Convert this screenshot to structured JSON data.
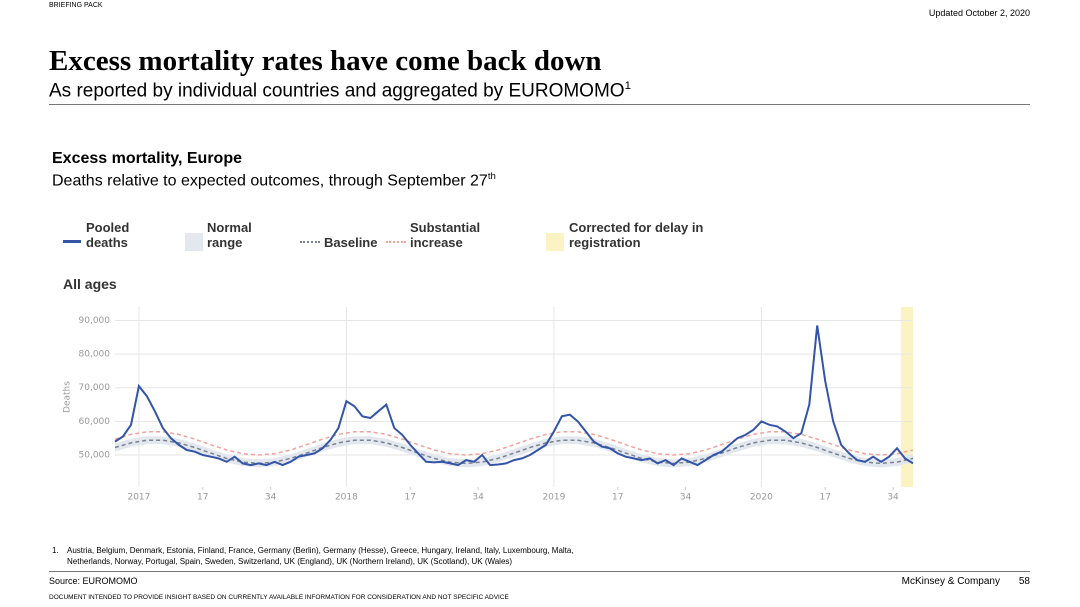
{
  "header": {
    "label": "BRIEFING PACK",
    "updated": "Updated October 2, 2020",
    "title": "Excess mortality rates have come back down",
    "subtitle": "As reported by individual countries and aggregated by EUROMOMO",
    "subtitle_note": "1"
  },
  "chart_data": {
    "type": "line",
    "title": "Excess mortality, Europe",
    "subtitle": "Deaths relative to expected outcomes, through September 27",
    "subtitle_suffix": "th",
    "panel_label": "All ages",
    "y_label": "Deaths",
    "xlim": [
      -6,
      194
    ],
    "ylim": [
      40500,
      94000
    ],
    "yticks": [
      {
        "value": 50000,
        "label": "50,000"
      },
      {
        "value": 60000,
        "label": "60,000"
      },
      {
        "value": 70000,
        "label": "70,000"
      },
      {
        "value": 80000,
        "label": "80,000"
      },
      {
        "value": 90000,
        "label": "90,000"
      }
    ],
    "xticks": [
      {
        "value": 0,
        "label": "2017"
      },
      {
        "value": 16,
        "label": "17"
      },
      {
        "value": 33,
        "label": "34"
      },
      {
        "value": 52,
        "label": "2018"
      },
      {
        "value": 68,
        "label": "17"
      },
      {
        "value": 85,
        "label": "34"
      },
      {
        "value": 104,
        "label": "2019"
      },
      {
        "value": 120,
        "label": "17"
      },
      {
        "value": 137,
        "label": "34"
      },
      {
        "value": 156,
        "label": "2020"
      },
      {
        "value": 172,
        "label": "17"
      },
      {
        "value": 189,
        "label": "34"
      }
    ],
    "grid": true,
    "corrected": {
      "name": "Corrected for delay in registration",
      "color": "#fcf3c4",
      "x": [
        191,
        194
      ]
    },
    "series": [
      {
        "name": "Pooled deaths",
        "color": "#3454a8",
        "style": "solid",
        "x": [
          -6,
          -4,
          -2,
          0,
          2,
          4,
          6,
          8,
          10,
          12,
          14,
          16,
          18,
          20,
          22,
          24,
          26,
          28,
          30,
          32,
          34,
          36,
          38,
          40,
          42,
          44,
          46,
          48,
          50,
          52,
          54,
          56,
          58,
          60,
          62,
          64,
          66,
          68,
          70,
          72,
          74,
          76,
          78,
          80,
          82,
          84,
          86,
          88,
          90,
          92,
          94,
          96,
          98,
          100,
          102,
          104,
          106,
          108,
          110,
          112,
          114,
          116,
          118,
          120,
          122,
          124,
          126,
          128,
          130,
          132,
          134,
          136,
          138,
          140,
          142,
          144,
          146,
          148,
          150,
          152,
          154,
          156,
          158,
          160,
          162,
          164,
          166,
          168,
          170,
          172,
          174,
          176,
          178,
          180,
          182,
          184,
          186,
          188,
          190,
          192,
          194
        ],
        "values": [
          54000,
          55500,
          59000,
          70500,
          67500,
          63000,
          58000,
          55000,
          53000,
          51500,
          51000,
          50000,
          49500,
          49000,
          48000,
          49500,
          47500,
          47000,
          47500,
          47000,
          48000,
          47000,
          48000,
          49500,
          50000,
          50500,
          52000,
          54500,
          58000,
          66000,
          64500,
          61500,
          61000,
          63000,
          65000,
          58000,
          56000,
          53000,
          50500,
          48000,
          47800,
          48000,
          47500,
          47000,
          48500,
          48000,
          50000,
          47000,
          47200,
          47500,
          48500,
          49000,
          50000,
          51500,
          53000,
          57000,
          61500,
          62000,
          60000,
          57000,
          54000,
          52500,
          52000,
          50500,
          49500,
          49000,
          48500,
          49000,
          47500,
          48500,
          47000,
          49000,
          48000,
          47000,
          48500,
          50000,
          51000,
          53000,
          55000,
          56000,
          57500,
          60000,
          59000,
          58500,
          57000,
          55000,
          56500,
          65000,
          88500,
          72000,
          60000,
          53000,
          50500,
          48500,
          48000,
          49500,
          48000,
          49500,
          52000,
          49000,
          47500
        ]
      },
      {
        "name": "Normal range",
        "color": "#e3e7ee",
        "style": "band",
        "x": [
          -6,
          -2,
          2,
          6,
          10,
          14,
          18,
          22,
          26,
          30,
          34,
          38,
          42,
          46,
          50,
          54,
          58,
          62,
          66,
          70,
          74,
          78,
          82,
          86,
          90,
          94,
          98,
          102,
          106,
          110,
          114,
          118,
          122,
          126,
          130,
          134,
          138,
          142,
          146,
          150,
          154,
          158,
          162,
          166,
          170,
          174,
          178,
          182,
          186,
          190,
          194
        ],
        "values": [
          53440,
          54820,
          55600,
          55600,
          54820,
          53440,
          51780,
          50210,
          49100,
          48700,
          49100,
          50210,
          51780,
          53440,
          54820,
          55600,
          55600,
          54820,
          53440,
          51780,
          50210,
          49100,
          48700,
          49100,
          50210,
          51780,
          53440,
          54820,
          55600,
          55600,
          54820,
          53440,
          51780,
          50210,
          49100,
          48700,
          49100,
          50210,
          51780,
          53440,
          54820,
          55600,
          55600,
          54820,
          53440,
          51780,
          50210,
          49100,
          48700,
          49100,
          50210
        ],
        "lower": [
          51040,
          52420,
          53200,
          53200,
          52420,
          51040,
          49380,
          47810,
          46700,
          46300,
          46700,
          47810,
          49380,
          51040,
          52420,
          53200,
          53200,
          52420,
          51040,
          49380,
          47810,
          46700,
          46300,
          46700,
          47810,
          49380,
          51040,
          52420,
          53200,
          53200,
          52420,
          51040,
          49380,
          47810,
          46700,
          46300,
          46700,
          47810,
          49380,
          51040,
          52420,
          53200,
          53200,
          52420,
          51040,
          49380,
          47810,
          46700,
          46300,
          46700,
          47810
        ]
      },
      {
        "name": "Baseline",
        "color": "#7b8291",
        "style": "dashed",
        "x": [
          -6,
          -2,
          2,
          6,
          10,
          14,
          18,
          22,
          26,
          30,
          34,
          38,
          42,
          46,
          50,
          54,
          58,
          62,
          66,
          70,
          74,
          78,
          82,
          86,
          90,
          94,
          98,
          102,
          106,
          110,
          114,
          118,
          122,
          126,
          130,
          134,
          138,
          142,
          146,
          150,
          154,
          158,
          162,
          166,
          170,
          174,
          178,
          182,
          186,
          190,
          194
        ],
        "values": [
          52240,
          53620,
          54400,
          54400,
          53620,
          52240,
          50580,
          49010,
          47900,
          47500,
          47900,
          49010,
          50580,
          52240,
          53620,
          54400,
          54400,
          53620,
          52240,
          50580,
          49010,
          47900,
          47500,
          47900,
          49010,
          50580,
          52240,
          53620,
          54400,
          54400,
          53620,
          52240,
          50580,
          49010,
          47900,
          47500,
          47900,
          49010,
          50580,
          52240,
          53620,
          54400,
          54400,
          53620,
          52240,
          50580,
          49010,
          47900,
          47500,
          47900,
          49010
        ]
      },
      {
        "name": "Substantial increase",
        "color": "#f0a39c",
        "style": "dashed",
        "x": [
          -6,
          -2,
          2,
          6,
          10,
          14,
          18,
          22,
          26,
          30,
          34,
          38,
          42,
          46,
          50,
          54,
          58,
          62,
          66,
          70,
          74,
          78,
          82,
          86,
          90,
          94,
          98,
          102,
          106,
          110,
          114,
          118,
          122,
          126,
          130,
          134,
          138,
          142,
          146,
          150,
          154,
          158,
          162,
          166,
          170,
          174,
          178,
          182,
          186,
          190,
          194
        ],
        "values": [
          54740,
          56120,
          56900,
          56900,
          56120,
          54740,
          53080,
          51510,
          50400,
          50000,
          50400,
          51510,
          53080,
          54740,
          56120,
          56900,
          56900,
          56120,
          54740,
          53080,
          51510,
          50400,
          50000,
          50400,
          51510,
          53080,
          54740,
          56120,
          56900,
          56900,
          56120,
          54740,
          53080,
          51510,
          50400,
          50000,
          50400,
          51510,
          53080,
          54740,
          56120,
          56900,
          56900,
          56120,
          54740,
          53080,
          51510,
          50400,
          50000,
          50400,
          51510
        ]
      }
    ]
  },
  "footnote": {
    "marker": "1.",
    "lines": [
      "Austria, Belgium, Denmark, Estonia, Finland, France, Germany (Berlin), Germany (Hesse), Greece, Hungary, Ireland, Italy, Luxembourg, Malta,",
      "Netherlands, Norway, Portugal, Spain, Sweden, Switzerland, UK (England), UK (Northern Ireland), UK (Scotland), UK (Wales)"
    ]
  },
  "footer": {
    "source": "Source: EUROMOMO",
    "company": "McKinsey & Company",
    "page": "58",
    "disclaimer": "DOCUMENT INTENDED TO PROVIDE INSIGHT BASED ON CURRENTLY AVAILABLE INFORMATION FOR CONSIDERATION AND NOT SPECIFIC ADVICE"
  }
}
